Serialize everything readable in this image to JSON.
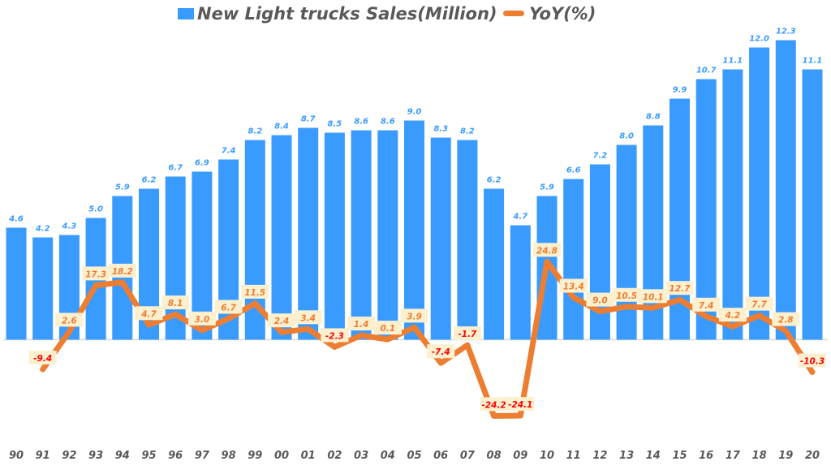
{
  "chart_data": {
    "type": "bar+line",
    "categories": [
      "90",
      "91",
      "92",
      "93",
      "94",
      "95",
      "96",
      "97",
      "98",
      "99",
      "00",
      "01",
      "02",
      "03",
      "04",
      "05",
      "06",
      "07",
      "08",
      "09",
      "10",
      "11",
      "12",
      "13",
      "14",
      "15",
      "16",
      "17",
      "18",
      "19",
      "20"
    ],
    "series": [
      {
        "name": "New Light trucks Sales(Million)",
        "type": "bar",
        "color": "#3a9bff",
        "values": [
          4.6,
          4.2,
          4.3,
          5.0,
          5.9,
          6.2,
          6.7,
          6.9,
          7.4,
          8.2,
          8.4,
          8.7,
          8.5,
          8.6,
          8.6,
          9.0,
          8.3,
          8.2,
          6.2,
          4.7,
          5.9,
          6.6,
          7.2,
          8.0,
          8.8,
          9.9,
          10.7,
          11.1,
          12.0,
          12.3,
          11.1
        ]
      },
      {
        "name": "YoY(%)",
        "type": "line",
        "color": "#ed7d31",
        "values": [
          null,
          -9.4,
          2.6,
          17.3,
          18.2,
          4.7,
          8.1,
          3.0,
          6.7,
          11.5,
          2.4,
          3.4,
          -2.3,
          1.4,
          0.1,
          3.9,
          -7.4,
          -1.7,
          -24.2,
          -24.1,
          24.8,
          13.4,
          9.0,
          10.5,
          10.1,
          12.7,
          7.4,
          4.2,
          7.7,
          2.8,
          -10.3
        ]
      }
    ],
    "legend": "top",
    "grid": false,
    "label_colors": {
      "bar": "#3a9bff",
      "positive": "#ed7d31",
      "negative": "#ff0000",
      "label_bg": "#fdf0cf"
    }
  }
}
